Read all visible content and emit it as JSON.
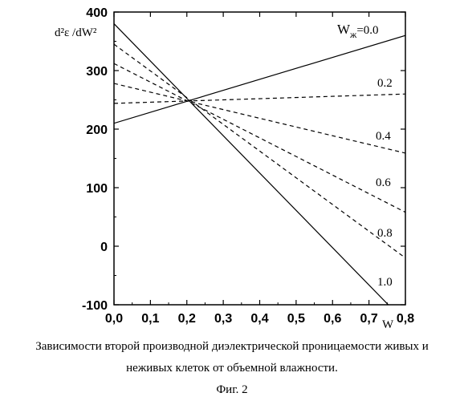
{
  "chart_data": {
    "type": "line",
    "ylabel": "d²ε /dW²",
    "xlabel": "W",
    "xlim": [
      0.0,
      0.8
    ],
    "ylim": [
      -100,
      400
    ],
    "xticks": [
      "0,0",
      "0,1",
      "0,2",
      "0,3",
      "0,4",
      "0,5",
      "0,6",
      "0,7",
      "0,8"
    ],
    "yticks": [
      "400",
      "300",
      "200",
      "100",
      "0",
      "-100"
    ],
    "legend_title": "Wж",
    "series": [
      {
        "name": "0.0",
        "x": [
          0.0,
          0.8
        ],
        "y": [
          210,
          360
        ],
        "style": "solid"
      },
      {
        "name": "0.2",
        "x": [
          0.0,
          0.8
        ],
        "y": [
          244,
          260
        ],
        "style": "dashed"
      },
      {
        "name": "0.4",
        "x": [
          0.0,
          0.8
        ],
        "y": [
          278,
          159
        ],
        "style": "dashed"
      },
      {
        "name": "0.6",
        "x": [
          0.0,
          0.8
        ],
        "y": [
          312,
          58
        ],
        "style": "dashed"
      },
      {
        "name": "0.8",
        "x": [
          0.0,
          0.8
        ],
        "y": [
          345,
          -20
        ],
        "style": "dashed"
      },
      {
        "name": "1.0",
        "x": [
          0.0,
          0.8
        ],
        "y": [
          380,
          -130
        ],
        "style": "solid"
      }
    ],
    "label_texts": {
      "first_prefix": "W",
      "first_sub": "ж",
      "first_value": "=0.0",
      "others": [
        "0.2",
        "0.4",
        "0.6",
        "0.8",
        "1.0"
      ]
    }
  },
  "caption": {
    "line1": "Зависимости второй производной диэлектрической проницаемости живых и",
    "line2": "неживых клеток от объемной влажности.",
    "fig": "Фиг. 2"
  }
}
